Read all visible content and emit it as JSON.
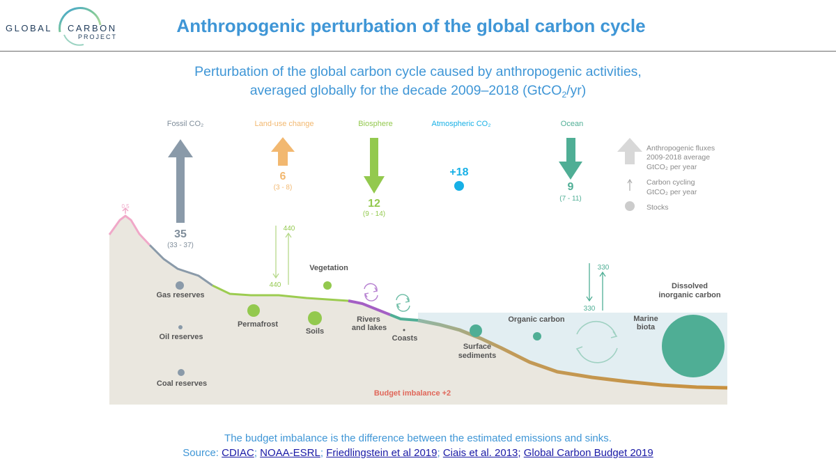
{
  "header": {
    "logo_line1": "GLOBAL",
    "logo_line2": "CARBON",
    "logo_line3": "PROJECT",
    "title": "Anthropogenic perturbation of the global carbon cycle"
  },
  "subtitle": {
    "line1": "Perturbation of the global carbon cycle caused by anthropogenic activities,",
    "line2_pre": "averaged globally for the decade 2009–2018 (GtCO",
    "line2_sub": "2",
    "line2_post": "/yr)"
  },
  "flux_headers": {
    "fossil": "Fossil CO₂",
    "landuse": "Land-use change",
    "biosphere": "Biosphere",
    "atmospheric": "Atmospheric CO₂",
    "ocean": "Ocean"
  },
  "fluxes": {
    "fossil_value": "35",
    "fossil_range": "(33 - 37)",
    "landuse_value": "6",
    "landuse_range": "(3 - 8)",
    "biosphere_value": "12",
    "biosphere_range": "(9 - 14)",
    "atmospheric_value": "+18",
    "ocean_value": "9",
    "ocean_range": "(7 - 11)",
    "volcanic_value": "0.5",
    "land_cycling_up": "440",
    "land_cycling_down": "440",
    "ocean_cycling_up": "330",
    "ocean_cycling_down": "330"
  },
  "legend": {
    "fluxes_line1": "Anthropogenic fluxes",
    "fluxes_line2": "2009-2018 average",
    "fluxes_line3": "GtCO₂ per year",
    "cycling_line1": "Carbon cycling",
    "cycling_line2": "GtCO₂ per year",
    "stocks": "Stocks"
  },
  "stocks": {
    "gas": "Gas reserves",
    "oil": "Oil reserves",
    "coal": "Coal reserves",
    "permafrost": "Permafrost",
    "soils": "Soils",
    "vegetation": "Vegetation",
    "rivers_line1": "Rivers",
    "rivers_line2": "and lakes",
    "coasts": "Coasts",
    "surface_sediments_line1": "Surface",
    "surface_sediments_line2": "sediments",
    "organic_carbon": "Organic carbon",
    "marine_biota_line1": "Marine",
    "marine_biota_line2": "biota",
    "dissolved_line1": "Dissolved",
    "dissolved_line2": "inorganic carbon",
    "budget_imbalance": "Budget imbalance +2"
  },
  "footer": {
    "note": "The budget imbalance is the difference between the estimated emissions and sinks.",
    "source_label": "Source:",
    "links": [
      "CDIAC",
      "NOAA-ESRL",
      "Friedlingstein et al 2019",
      "Ciais et al. 2013",
      "Global Carbon Budget 2019"
    ],
    "separator": ";"
  },
  "colors": {
    "title_blue": "#3f96d6",
    "fossil": "#8a9aa9",
    "landuse": "#f2b870",
    "biosphere": "#93c94e",
    "atmospheric": "#17b0e6",
    "ocean": "#4fae95",
    "budget": "#e0675a",
    "land_fill": "#eae7df",
    "ocean_fill": "#e2eef2"
  }
}
